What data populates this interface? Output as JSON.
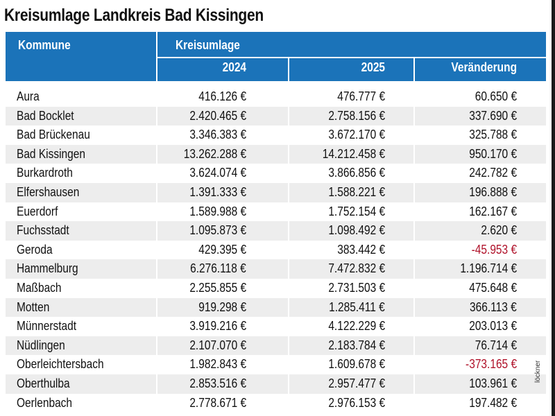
{
  "title": "Kreisumlage Landkreis Bad Kissingen",
  "header": {
    "kommune": "Kommune",
    "kreisumlage": "Kreisumlage",
    "year1": "2024",
    "year2": "2025",
    "change": "Veränderung"
  },
  "rows": [
    {
      "name": "Aura",
      "y2024": "416.126 €",
      "y2025": "476.777 €",
      "change": "60.650 €",
      "negative": false
    },
    {
      "name": "Bad Bocklet",
      "y2024": "2.420.465 €",
      "y2025": "2.758.156 €",
      "change": "337.690 €",
      "negative": false
    },
    {
      "name": "Bad Brückenau",
      "y2024": "3.346.383 €",
      "y2025": "3.672.170 €",
      "change": "325.788 €",
      "negative": false
    },
    {
      "name": "Bad Kissingen",
      "y2024": "13.262.288 €",
      "y2025": "14.212.458 €",
      "change": "950.170 €",
      "negative": false
    },
    {
      "name": "Burkardroth",
      "y2024": "3.624.074 €",
      "y2025": "3.866.856 €",
      "change": "242.782 €",
      "negative": false
    },
    {
      "name": "Elfershausen",
      "y2024": "1.391.333 €",
      "y2025": "1.588.221 €",
      "change": "196.888 €",
      "negative": false
    },
    {
      "name": "Euerdorf",
      "y2024": "1.589.988 €",
      "y2025": "1.752.154 €",
      "change": "162.167 €",
      "negative": false
    },
    {
      "name": "Fuchsstadt",
      "y2024": "1.095.873 €",
      "y2025": "1.098.492 €",
      "change": "2.620 €",
      "negative": false
    },
    {
      "name": "Geroda",
      "y2024": "429.395 €",
      "y2025": "383.442 €",
      "change": "-45.953 €",
      "negative": true
    },
    {
      "name": "Hammelburg",
      "y2024": "6.276.118 €",
      "y2025": "7.472.832 €",
      "change": "1.196.714 €",
      "negative": false
    },
    {
      "name": "Maßbach",
      "y2024": "2.255.855 €",
      "y2025": "2.731.503 €",
      "change": "475.648 €",
      "negative": false
    },
    {
      "name": "Motten",
      "y2024": "919.298 €",
      "y2025": "1.285.411 €",
      "change": "366.113 €",
      "negative": false
    },
    {
      "name": "Münnerstadt",
      "y2024": "3.919.216 €",
      "y2025": "4.122.229 €",
      "change": "203.013 €",
      "negative": false
    },
    {
      "name": "Nüdlingen",
      "y2024": "2.107.070 €",
      "y2025": "2.183.784 €",
      "change": "76.714 €",
      "negative": false
    },
    {
      "name": "Oberleichtersbach",
      "y2024": "1.982.843 €",
      "y2025": "1.609.678 €",
      "change": "-373.165 €",
      "negative": true
    },
    {
      "name": "Oberthulba",
      "y2024": "2.853.516 €",
      "y2025": "2.957.477 €",
      "change": "103.961 €",
      "negative": false
    },
    {
      "name": "Oerlenbach",
      "y2024": "2.778.671 €",
      "y2025": "2.976.153 €",
      "change": "197.482 €",
      "negative": false
    }
  ],
  "credit": "löckner",
  "colors": {
    "header_bg": "#1b73b9",
    "stripe": "#ededed",
    "negative": "#b0122a"
  }
}
